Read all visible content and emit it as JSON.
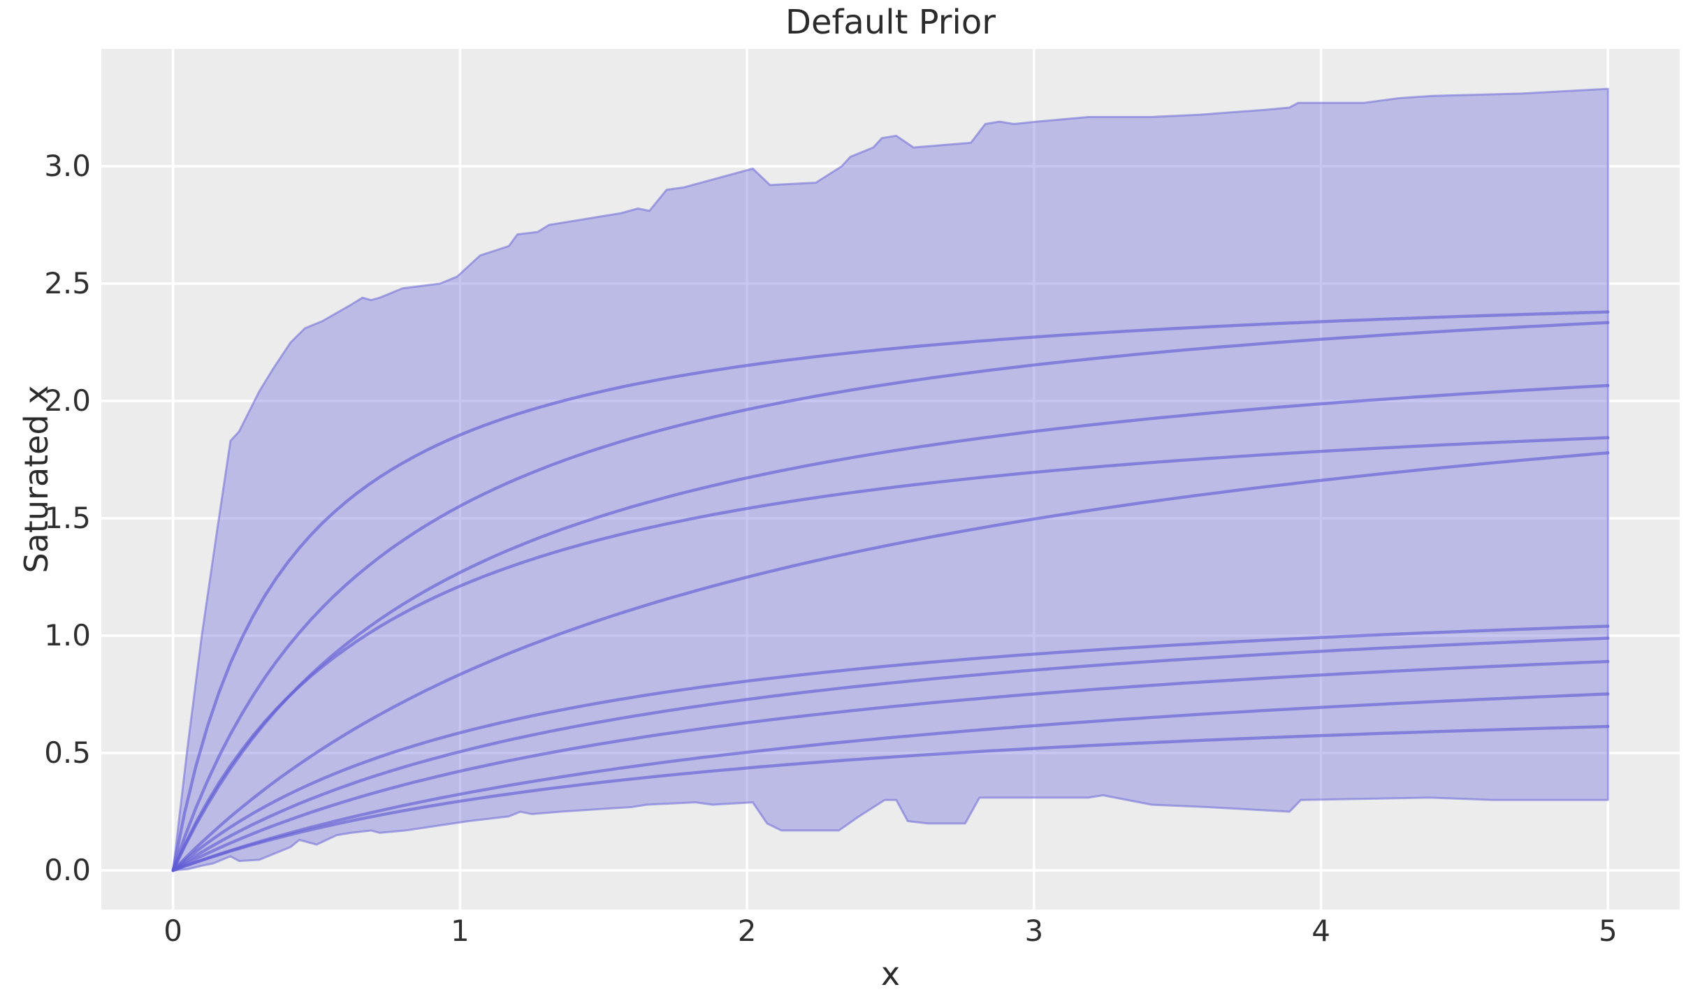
{
  "figure": {
    "title": "Default Prior",
    "xlabel": "x",
    "ylabel": "Saturated x"
  },
  "axes": {
    "xlim": [
      -0.25,
      5.25
    ],
    "ylim": [
      -0.1665,
      3.5
    ],
    "x_ticks": [
      0,
      1,
      2,
      3,
      4,
      5
    ],
    "x_tick_labels": [
      "0",
      "1",
      "2",
      "3",
      "4",
      "5"
    ],
    "y_ticks": [
      0.0,
      0.5,
      1.0,
      1.5,
      2.0,
      2.5,
      3.0
    ],
    "y_tick_labels": [
      "0.0",
      "0.5",
      "1.0",
      "1.5",
      "2.0",
      "2.5",
      "3.0"
    ],
    "grid": true,
    "legend": false
  },
  "colors": {
    "figure_background": "#ffffff",
    "axes_background": "#ececec",
    "grid_color": "#ffffff",
    "band_fill": "rgba(122,118,220,0.42)",
    "band_edge": "rgba(110,106,215,0.55)",
    "curve_stroke": "rgba(95,91,213,0.62)",
    "text_color": "#2b2b2b"
  },
  "chart_data": {
    "type": "area",
    "title": "Default Prior",
    "xlabel": "x",
    "ylabel": "Saturated x",
    "x_range": [
      0,
      5
    ],
    "description": "Prior predictive envelope (min-max shaded band) with 10 sampled saturation curves of form y = a*x/(x+b), all passing through the origin.",
    "band": {
      "top": [
        [
          0.0,
          0.0
        ],
        [
          0.05,
          0.52
        ],
        [
          0.1,
          1.0
        ],
        [
          0.15,
          1.42
        ],
        [
          0.2,
          1.83
        ],
        [
          0.23,
          1.87
        ],
        [
          0.3,
          2.04
        ],
        [
          0.35,
          2.14
        ],
        [
          0.41,
          2.25
        ],
        [
          0.46,
          2.31
        ],
        [
          0.52,
          2.34
        ],
        [
          0.62,
          2.41
        ],
        [
          0.66,
          2.44
        ],
        [
          0.69,
          2.43
        ],
        [
          0.72,
          2.44
        ],
        [
          0.8,
          2.48
        ],
        [
          0.93,
          2.5
        ],
        [
          0.99,
          2.53
        ],
        [
          1.07,
          2.62
        ],
        [
          1.17,
          2.66
        ],
        [
          1.2,
          2.71
        ],
        [
          1.27,
          2.72
        ],
        [
          1.31,
          2.75
        ],
        [
          1.56,
          2.8
        ],
        [
          1.62,
          2.82
        ],
        [
          1.66,
          2.81
        ],
        [
          1.72,
          2.9
        ],
        [
          1.78,
          2.91
        ],
        [
          2.02,
          2.99
        ],
        [
          2.08,
          2.92
        ],
        [
          2.24,
          2.93
        ],
        [
          2.33,
          3.0
        ],
        [
          2.36,
          3.04
        ],
        [
          2.44,
          3.08
        ],
        [
          2.47,
          3.12
        ],
        [
          2.52,
          3.13
        ],
        [
          2.58,
          3.08
        ],
        [
          2.78,
          3.1
        ],
        [
          2.83,
          3.18
        ],
        [
          2.88,
          3.19
        ],
        [
          2.93,
          3.18
        ],
        [
          3.01,
          3.19
        ],
        [
          3.19,
          3.21
        ],
        [
          3.41,
          3.21
        ],
        [
          3.58,
          3.22
        ],
        [
          3.8,
          3.24
        ],
        [
          3.89,
          3.25
        ],
        [
          3.92,
          3.27
        ],
        [
          4.15,
          3.27
        ],
        [
          4.27,
          3.29
        ],
        [
          4.39,
          3.3
        ],
        [
          4.7,
          3.31
        ],
        [
          5.0,
          3.33
        ]
      ],
      "bottom": [
        [
          0.0,
          0.0
        ],
        [
          0.05,
          0.005
        ],
        [
          0.1,
          0.02
        ],
        [
          0.14,
          0.03
        ],
        [
          0.2,
          0.06
        ],
        [
          0.23,
          0.04
        ],
        [
          0.3,
          0.045
        ],
        [
          0.41,
          0.1
        ],
        [
          0.44,
          0.13
        ],
        [
          0.5,
          0.11
        ],
        [
          0.57,
          0.15
        ],
        [
          0.62,
          0.16
        ],
        [
          0.69,
          0.17
        ],
        [
          0.72,
          0.16
        ],
        [
          0.81,
          0.17
        ],
        [
          1.03,
          0.21
        ],
        [
          1.17,
          0.23
        ],
        [
          1.21,
          0.25
        ],
        [
          1.25,
          0.24
        ],
        [
          1.35,
          0.25
        ],
        [
          1.6,
          0.27
        ],
        [
          1.65,
          0.28
        ],
        [
          1.82,
          0.29
        ],
        [
          1.88,
          0.28
        ],
        [
          2.02,
          0.29
        ],
        [
          2.07,
          0.2
        ],
        [
          2.12,
          0.17
        ],
        [
          2.32,
          0.17
        ],
        [
          2.39,
          0.23
        ],
        [
          2.48,
          0.3
        ],
        [
          2.52,
          0.3
        ],
        [
          2.56,
          0.21
        ],
        [
          2.63,
          0.2
        ],
        [
          2.76,
          0.2
        ],
        [
          2.81,
          0.31
        ],
        [
          2.85,
          0.31
        ],
        [
          3.19,
          0.31
        ],
        [
          3.24,
          0.32
        ],
        [
          3.41,
          0.28
        ],
        [
          3.6,
          0.27
        ],
        [
          3.89,
          0.25
        ],
        [
          3.93,
          0.3
        ],
        [
          4.38,
          0.31
        ],
        [
          4.6,
          0.3
        ],
        [
          5.0,
          0.3
        ]
      ]
    },
    "curves_model": "y = a*x/(x+b)",
    "curves": [
      {
        "a": 2.56,
        "b": 0.38,
        "y_at_x5": 2.38
      },
      {
        "a": 2.67,
        "b": 0.72,
        "y_at_x5": 2.33
      },
      {
        "a": 2.45,
        "b": 0.93,
        "y_at_x5": 2.07
      },
      {
        "a": 2.12,
        "b": 0.75,
        "y_at_x5": 1.84
      },
      {
        "a": 2.48,
        "b": 1.97,
        "y_at_x5": 1.78
      },
      {
        "a": 1.29,
        "b": 1.2,
        "y_at_x5": 1.04
      },
      {
        "a": 1.3,
        "b": 1.57,
        "y_at_x5": 0.99
      },
      {
        "a": 1.23,
        "b": 1.91,
        "y_at_x5": 0.89
      },
      {
        "a": 1.12,
        "b": 2.45,
        "y_at_x5": 0.75
      },
      {
        "a": 0.84,
        "b": 1.85,
        "y_at_x5": 0.61
      }
    ]
  }
}
